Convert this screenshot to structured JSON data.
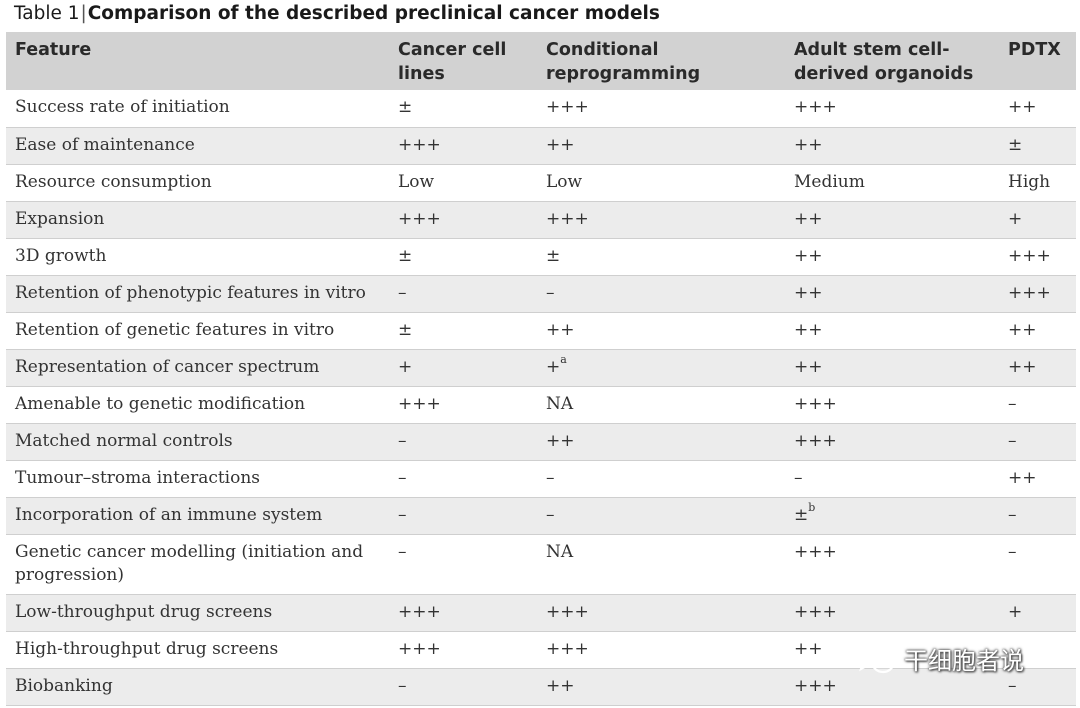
{
  "caption": {
    "label": "Table 1",
    "separator": "|",
    "title": "Comparison of the described preclinical cancer models"
  },
  "headers": [
    "Feature",
    "Cancer cell lines",
    "Conditional reprogramming",
    "Adult stem cell-derived organoids",
    "PDTX"
  ],
  "rows": [
    {
      "feature": "Success rate of initiation",
      "cells": [
        "±",
        "+++",
        "+++",
        "++"
      ]
    },
    {
      "feature": "Ease of maintenance",
      "cells": [
        "+++",
        "++",
        "++",
        "±"
      ]
    },
    {
      "feature": "Resource consumption",
      "cells": [
        "Low",
        "Low",
        "Medium",
        "High"
      ]
    },
    {
      "feature": "Expansion",
      "cells": [
        "+++",
        "+++",
        "++",
        "+"
      ]
    },
    {
      "feature": "3D growth",
      "cells": [
        "±",
        "±",
        "++",
        "+++"
      ]
    },
    {
      "feature": "Retention of phenotypic features in vitro",
      "cells": [
        "–",
        "–",
        "++",
        "+++"
      ]
    },
    {
      "feature": "Retention of genetic features in vitro",
      "cells": [
        "±",
        "++",
        "++",
        "++"
      ]
    },
    {
      "feature": "Representation of cancer spectrum",
      "cells": [
        "+",
        "+",
        "++",
        "++"
      ],
      "sup": {
        "1": "a"
      }
    },
    {
      "feature": "Amenable to genetic modification",
      "cells": [
        "+++",
        "NA",
        "+++",
        "–"
      ]
    },
    {
      "feature": "Matched normal controls",
      "cells": [
        "–",
        "++",
        "+++",
        "–"
      ]
    },
    {
      "feature": "Tumour–stroma interactions",
      "cells": [
        "–",
        "–",
        "–",
        "++"
      ]
    },
    {
      "feature": "Incorporation of an immune system",
      "cells": [
        "–",
        "–",
        "±",
        "–"
      ],
      "sup": {
        "2": "b"
      }
    },
    {
      "feature": "Genetic cancer modelling (initiation and progression)",
      "cells": [
        "–",
        "NA",
        "+++",
        "–"
      ]
    },
    {
      "feature": "Low-throughput drug screens",
      "cells": [
        "+++",
        "+++",
        "+++",
        "+"
      ]
    },
    {
      "feature": "High-throughput drug screens",
      "cells": [
        "+++",
        "+++",
        "++",
        ""
      ]
    },
    {
      "feature": "Biobanking",
      "cells": [
        "–",
        "++",
        "+++",
        "–"
      ]
    }
  ],
  "watermark": {
    "icon": "wechat-icon",
    "text": "干细胞者说"
  }
}
